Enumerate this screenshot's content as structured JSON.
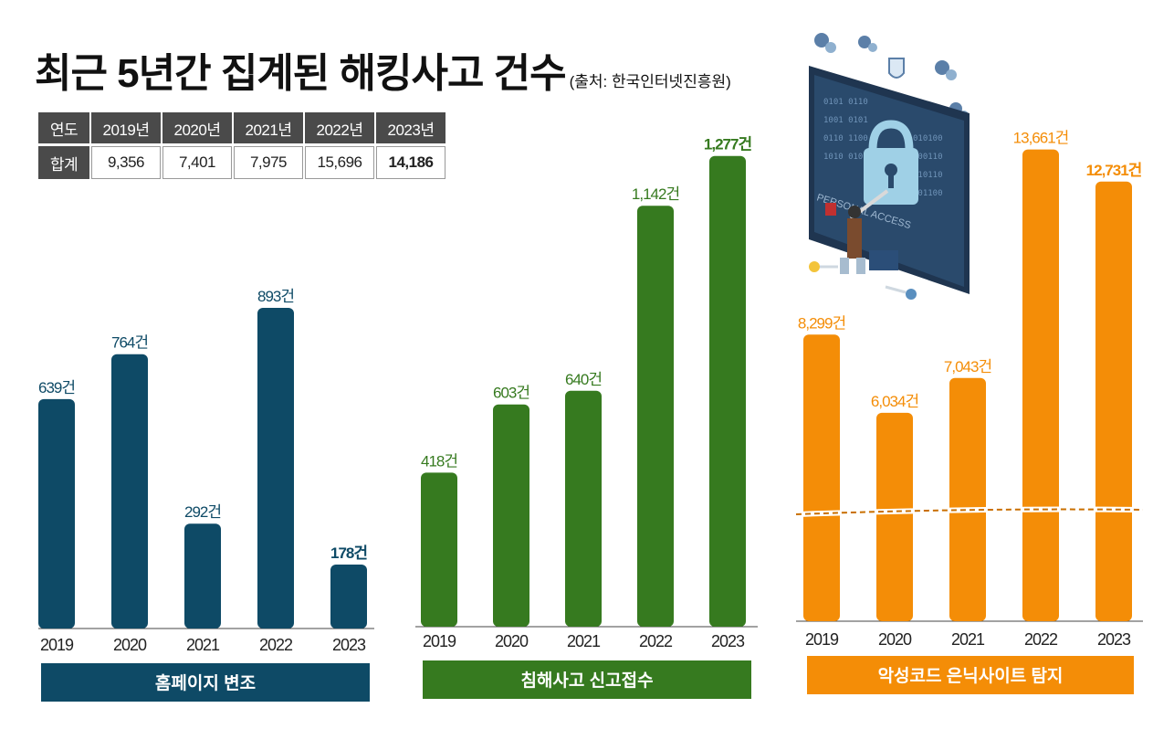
{
  "title": "최근 5년간 집계된 해킹사고 건수",
  "source": "(출처: 한국인터넷진흥원)",
  "summary_table": {
    "row_header_year": "연도",
    "row_header_total": "합계",
    "years": [
      "2019년",
      "2020년",
      "2021년",
      "2022년",
      "2023년"
    ],
    "totals": [
      "9,356",
      "7,401",
      "7,975",
      "15,696",
      "14,186"
    ]
  },
  "illustration": {
    "text": "PERSONAL ACCESS",
    "icon": "padlock-hacker-illustration"
  },
  "colors": {
    "blue": "#0e4a66",
    "green": "#367a1f",
    "orange": "#f48d07"
  },
  "chart_data": [
    {
      "type": "bar",
      "title": "홈페이지 변조",
      "categories": [
        "2019",
        "2020",
        "2021",
        "2022",
        "2023"
      ],
      "values": [
        639,
        764,
        292,
        893,
        178
      ],
      "labels": [
        "639건",
        "764건",
        "292건",
        "893건",
        "178건"
      ],
      "ylim": [
        0,
        1000
      ]
    },
    {
      "type": "bar",
      "title": "침해사고 신고접수",
      "categories": [
        "2019",
        "2020",
        "2021",
        "2022",
        "2023"
      ],
      "values": [
        418,
        603,
        640,
        1142,
        1277
      ],
      "labels": [
        "418건",
        "603건",
        "640건",
        "1,142건",
        "1,277건"
      ],
      "ylim": [
        0,
        1400
      ]
    },
    {
      "type": "bar",
      "title": "악성코드 은닉사이트 탐지",
      "categories": [
        "2019",
        "2020",
        "2021",
        "2022",
        "2023"
      ],
      "values": [
        8299,
        6034,
        7043,
        13661,
        12731
      ],
      "labels": [
        "8,299건",
        "6,034건",
        "7,043건",
        "13,661건",
        "12,731건"
      ],
      "ylim": [
        0,
        14000
      ],
      "annotations": [
        "broken-axis"
      ]
    }
  ]
}
